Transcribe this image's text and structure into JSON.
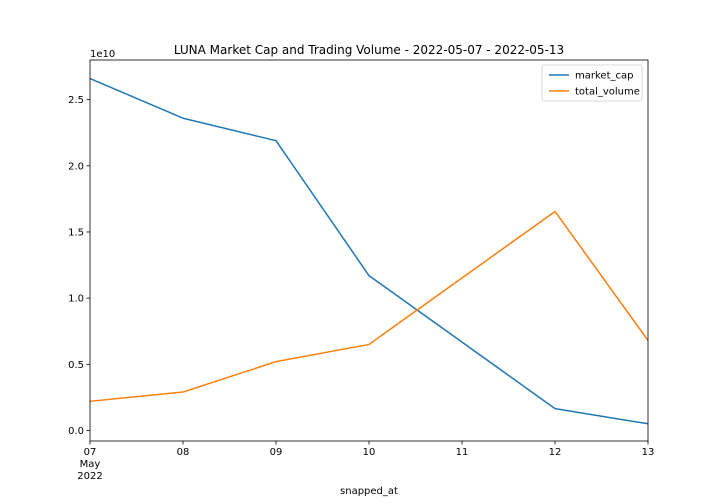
{
  "chart_data": {
    "type": "line",
    "title": "LUNA Market Cap and Trading Volume - 2022-05-07 - 2022-05-13",
    "xlabel": "snapped_at",
    "ylabel": "",
    "y_offset_label": "1e10",
    "x": [
      "2022-05-07",
      "2022-05-08",
      "2022-05-09",
      "2022-05-10",
      "2022-05-11",
      "2022-05-12",
      "2022-05-13"
    ],
    "x_tick_labels": [
      "07",
      "08",
      "09",
      "10",
      "11",
      "12",
      "13"
    ],
    "x_tick_sublabels": [
      "May",
      "2022"
    ],
    "xlim": [
      "2022-05-07",
      "2022-05-13"
    ],
    "ylim": [
      -0.08,
      2.8
    ],
    "y_scale_factor": 10000000000,
    "y_ticks": [
      0.0,
      0.5,
      1.0,
      1.5,
      2.0,
      2.5
    ],
    "y_tick_labels": [
      "0.0",
      "0.5",
      "1.0",
      "1.5",
      "2.0",
      "2.5"
    ],
    "grid": false,
    "legend_position": "top-right",
    "series": [
      {
        "name": "market_cap",
        "color": "#1f77b4",
        "values": [
          2.66,
          2.36,
          2.19,
          1.17,
          null,
          0.165,
          0.05
        ]
      },
      {
        "name": "total_volume",
        "color": "#ff7f0e",
        "values": [
          0.22,
          0.29,
          0.52,
          0.65,
          null,
          1.655,
          0.68
        ]
      }
    ]
  }
}
